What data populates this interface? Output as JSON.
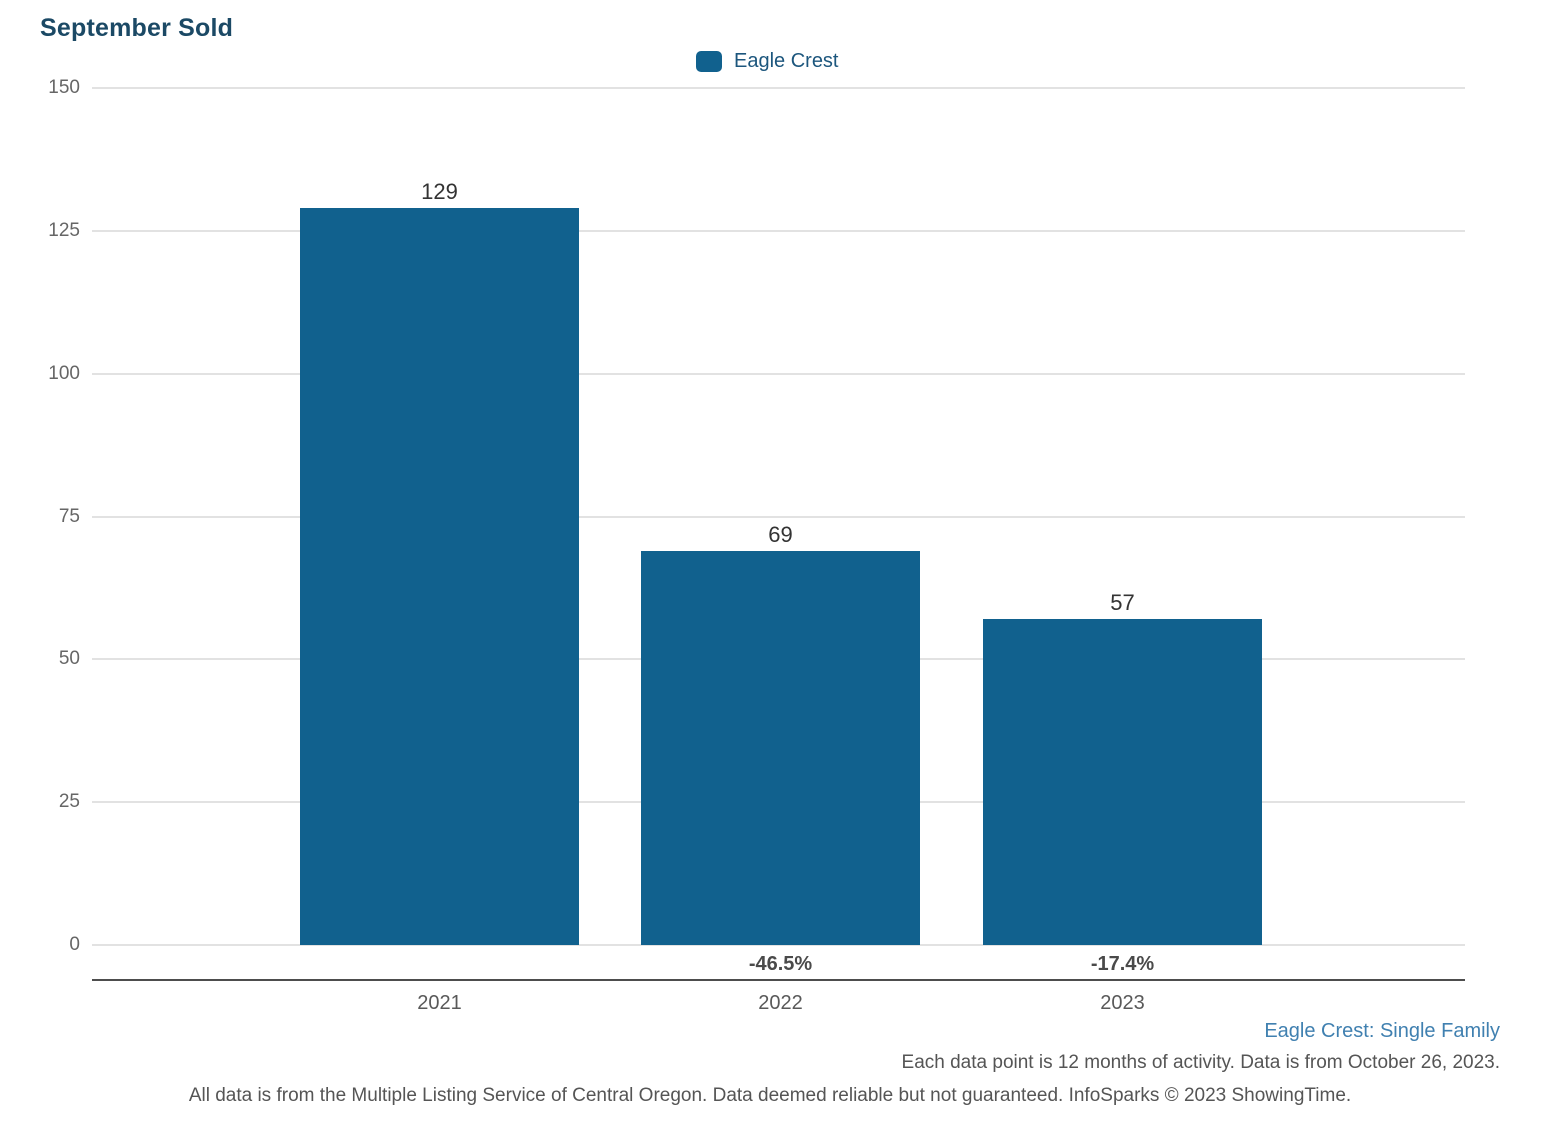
{
  "title": "September Sold",
  "legend": {
    "label": "Eagle Crest",
    "swatch_color": "#11618E"
  },
  "chart_data": {
    "type": "bar",
    "title": "September Sold",
    "categories": [
      "2021",
      "2022",
      "2023"
    ],
    "series": [
      {
        "name": "Eagle Crest",
        "values": [
          129,
          69,
          57
        ]
      }
    ],
    "value_labels": [
      "129",
      "69",
      "57"
    ],
    "change_labels": [
      "",
      "-46.5%",
      "-17.4%"
    ],
    "xlabel": "",
    "ylabel": "",
    "ylim": [
      0,
      150
    ],
    "yticks": [
      0,
      25,
      50,
      75,
      100,
      125,
      150
    ],
    "grid": true,
    "legend_position": "top-center",
    "bar_color": "#11618E"
  },
  "footer": {
    "series_context": "Eagle Crest: Single Family",
    "data_note": "Each data point is 12 months of activity. Data is from October 26, 2023.",
    "disclaimer": "All data is from the Multiple Listing Service of Central Oregon. Data deemed reliable but not guaranteed. InfoSparks © 2023 ShowingTime."
  },
  "colors": {
    "title_text": "#1B4965",
    "legend_text": "#1C567D",
    "bar": "#11618E",
    "value_label": "#333333",
    "change_label": "#4A4A4A",
    "x_axis_label": "#595959",
    "y_tick_label": "#666666",
    "gridline": "#E2E2E2",
    "axis_line": "#4D4D4D",
    "footer_blue": "#4080B0",
    "footer_gray": "#555555"
  }
}
